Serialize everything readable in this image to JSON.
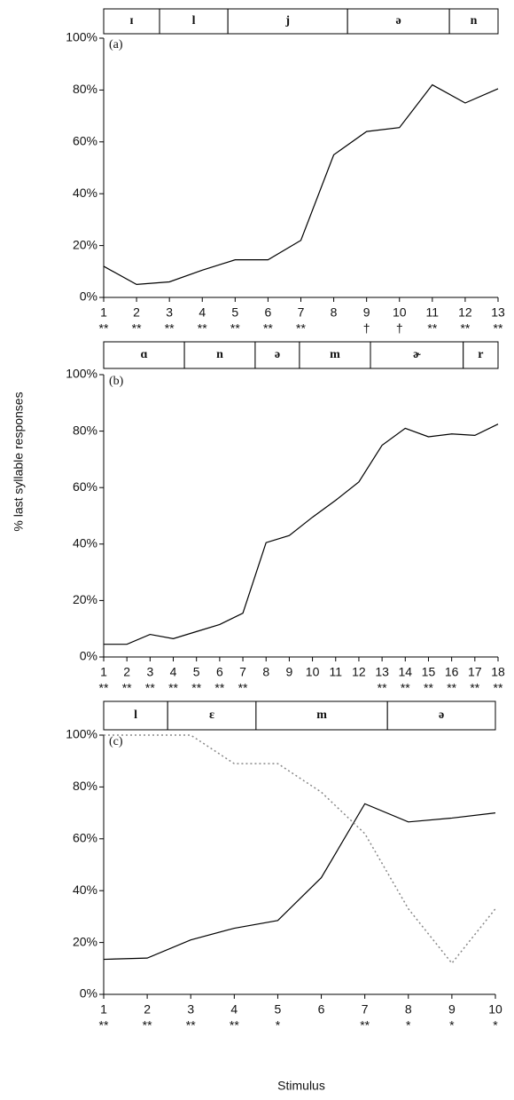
{
  "ylabel": "% last syllable responses",
  "xlabel": "Stimulus",
  "chart_data": [
    {
      "type": "line",
      "panel_label": "(a)",
      "x": [
        1,
        2,
        3,
        4,
        5,
        6,
        7,
        8,
        9,
        10,
        11,
        12,
        13
      ],
      "xlim": [
        1,
        13
      ],
      "xticks": [
        1,
        2,
        3,
        4,
        5,
        6,
        7,
        8,
        9,
        10,
        11,
        12,
        13
      ],
      "ylim": [
        0,
        100
      ],
      "yticks": [
        {
          "value": 0,
          "label": "0%"
        },
        {
          "value": 20,
          "label": "20%"
        },
        {
          "value": 40,
          "label": "40%"
        },
        {
          "value": 60,
          "label": "60%"
        },
        {
          "value": 80,
          "label": "80%"
        },
        {
          "value": 100,
          "label": "100%"
        }
      ],
      "series": [
        {
          "color": "#000000",
          "style": "solid",
          "values": [
            12,
            5,
            6,
            10.5,
            14.5,
            14.5,
            22,
            55,
            64,
            65.5,
            82,
            75,
            80.5
          ]
        }
      ],
      "tick_annotations": [
        "**",
        "**",
        "**",
        "**",
        "**",
        "**",
        "**",
        null,
        "†",
        "†",
        "**",
        "**",
        "**"
      ],
      "segments": [
        {
          "label": "ɪ",
          "start": 1,
          "end": 2.7
        },
        {
          "label": "l",
          "start": 2.7,
          "end": 4.78
        },
        {
          "label": "j",
          "start": 4.78,
          "end": 8.42
        },
        {
          "label": "ə",
          "start": 8.42,
          "end": 11.52
        },
        {
          "label": "n",
          "start": 11.52,
          "end": 13
        }
      ]
    },
    {
      "type": "line",
      "panel_label": "(b)",
      "x": [
        1,
        2,
        3,
        4,
        5,
        6,
        7,
        8,
        9,
        10,
        11,
        12,
        13,
        14,
        15,
        16,
        17,
        18
      ],
      "xlim": [
        1,
        18
      ],
      "xticks": [
        1,
        2,
        3,
        4,
        5,
        6,
        7,
        8,
        9,
        10,
        11,
        12,
        13,
        14,
        15,
        16,
        17,
        18
      ],
      "ylim": [
        0,
        100
      ],
      "yticks": [
        {
          "value": 0,
          "label": "0%"
        },
        {
          "value": 20,
          "label": "20%"
        },
        {
          "value": 40,
          "label": "40%"
        },
        {
          "value": 60,
          "label": "60%"
        },
        {
          "value": 80,
          "label": "80%"
        },
        {
          "value": 100,
          "label": "100%"
        }
      ],
      "series": [
        {
          "color": "#000000",
          "style": "solid",
          "values": [
            4.5,
            4.5,
            8,
            6.5,
            9,
            11.5,
            15.5,
            40.5,
            43,
            49.5,
            55.5,
            62,
            75,
            81,
            78,
            79,
            78.5,
            82.5
          ]
        }
      ],
      "tick_annotations": [
        "**",
        "**",
        "**",
        "**",
        "**",
        "**",
        "**",
        null,
        null,
        null,
        null,
        null,
        "**",
        "**",
        "**",
        "**",
        "**",
        "**"
      ],
      "segments": [
        {
          "label": "ɑ",
          "start": 1,
          "end": 4.48
        },
        {
          "label": "n",
          "start": 4.48,
          "end": 7.53
        },
        {
          "label": "ə",
          "start": 7.53,
          "end": 9.44
        },
        {
          "label": "m",
          "start": 9.44,
          "end": 12.5
        },
        {
          "label": "ɚ",
          "start": 12.5,
          "end": 16.5
        },
        {
          "label": "r",
          "start": 16.5,
          "end": 18
        }
      ]
    },
    {
      "type": "line",
      "panel_label": "(c)",
      "x": [
        1,
        2,
        3,
        4,
        5,
        6,
        7,
        8,
        9,
        10
      ],
      "xlim": [
        1,
        10
      ],
      "xticks": [
        1,
        2,
        3,
        4,
        5,
        6,
        7,
        8,
        9,
        10
      ],
      "ylim": [
        0,
        100
      ],
      "yticks": [
        {
          "value": 0,
          "label": "0%"
        },
        {
          "value": 20,
          "label": "20%"
        },
        {
          "value": 40,
          "label": "40%"
        },
        {
          "value": 60,
          "label": "60%"
        },
        {
          "value": 80,
          "label": "80%"
        },
        {
          "value": 100,
          "label": "100%"
        }
      ],
      "series": [
        {
          "color": "#000000",
          "style": "solid",
          "values": [
            13.5,
            14,
            21,
            25.5,
            28.5,
            45,
            73.5,
            66.5,
            68,
            70
          ]
        },
        {
          "color": "#888888",
          "style": "dotted",
          "values": [
            100,
            100,
            100,
            89,
            89,
            78,
            62,
            33,
            12,
            33
          ]
        }
      ],
      "tick_annotations": [
        "**",
        "**",
        "**",
        "**",
        "*",
        null,
        "**",
        "*",
        "*",
        "*"
      ],
      "segments": [
        {
          "label": "l",
          "start": 1,
          "end": 2.47
        },
        {
          "label": "ɛ",
          "start": 2.47,
          "end": 4.5
        },
        {
          "label": "m",
          "start": 4.5,
          "end": 7.52
        },
        {
          "label": "ə",
          "start": 7.52,
          "end": 10
        }
      ]
    }
  ]
}
